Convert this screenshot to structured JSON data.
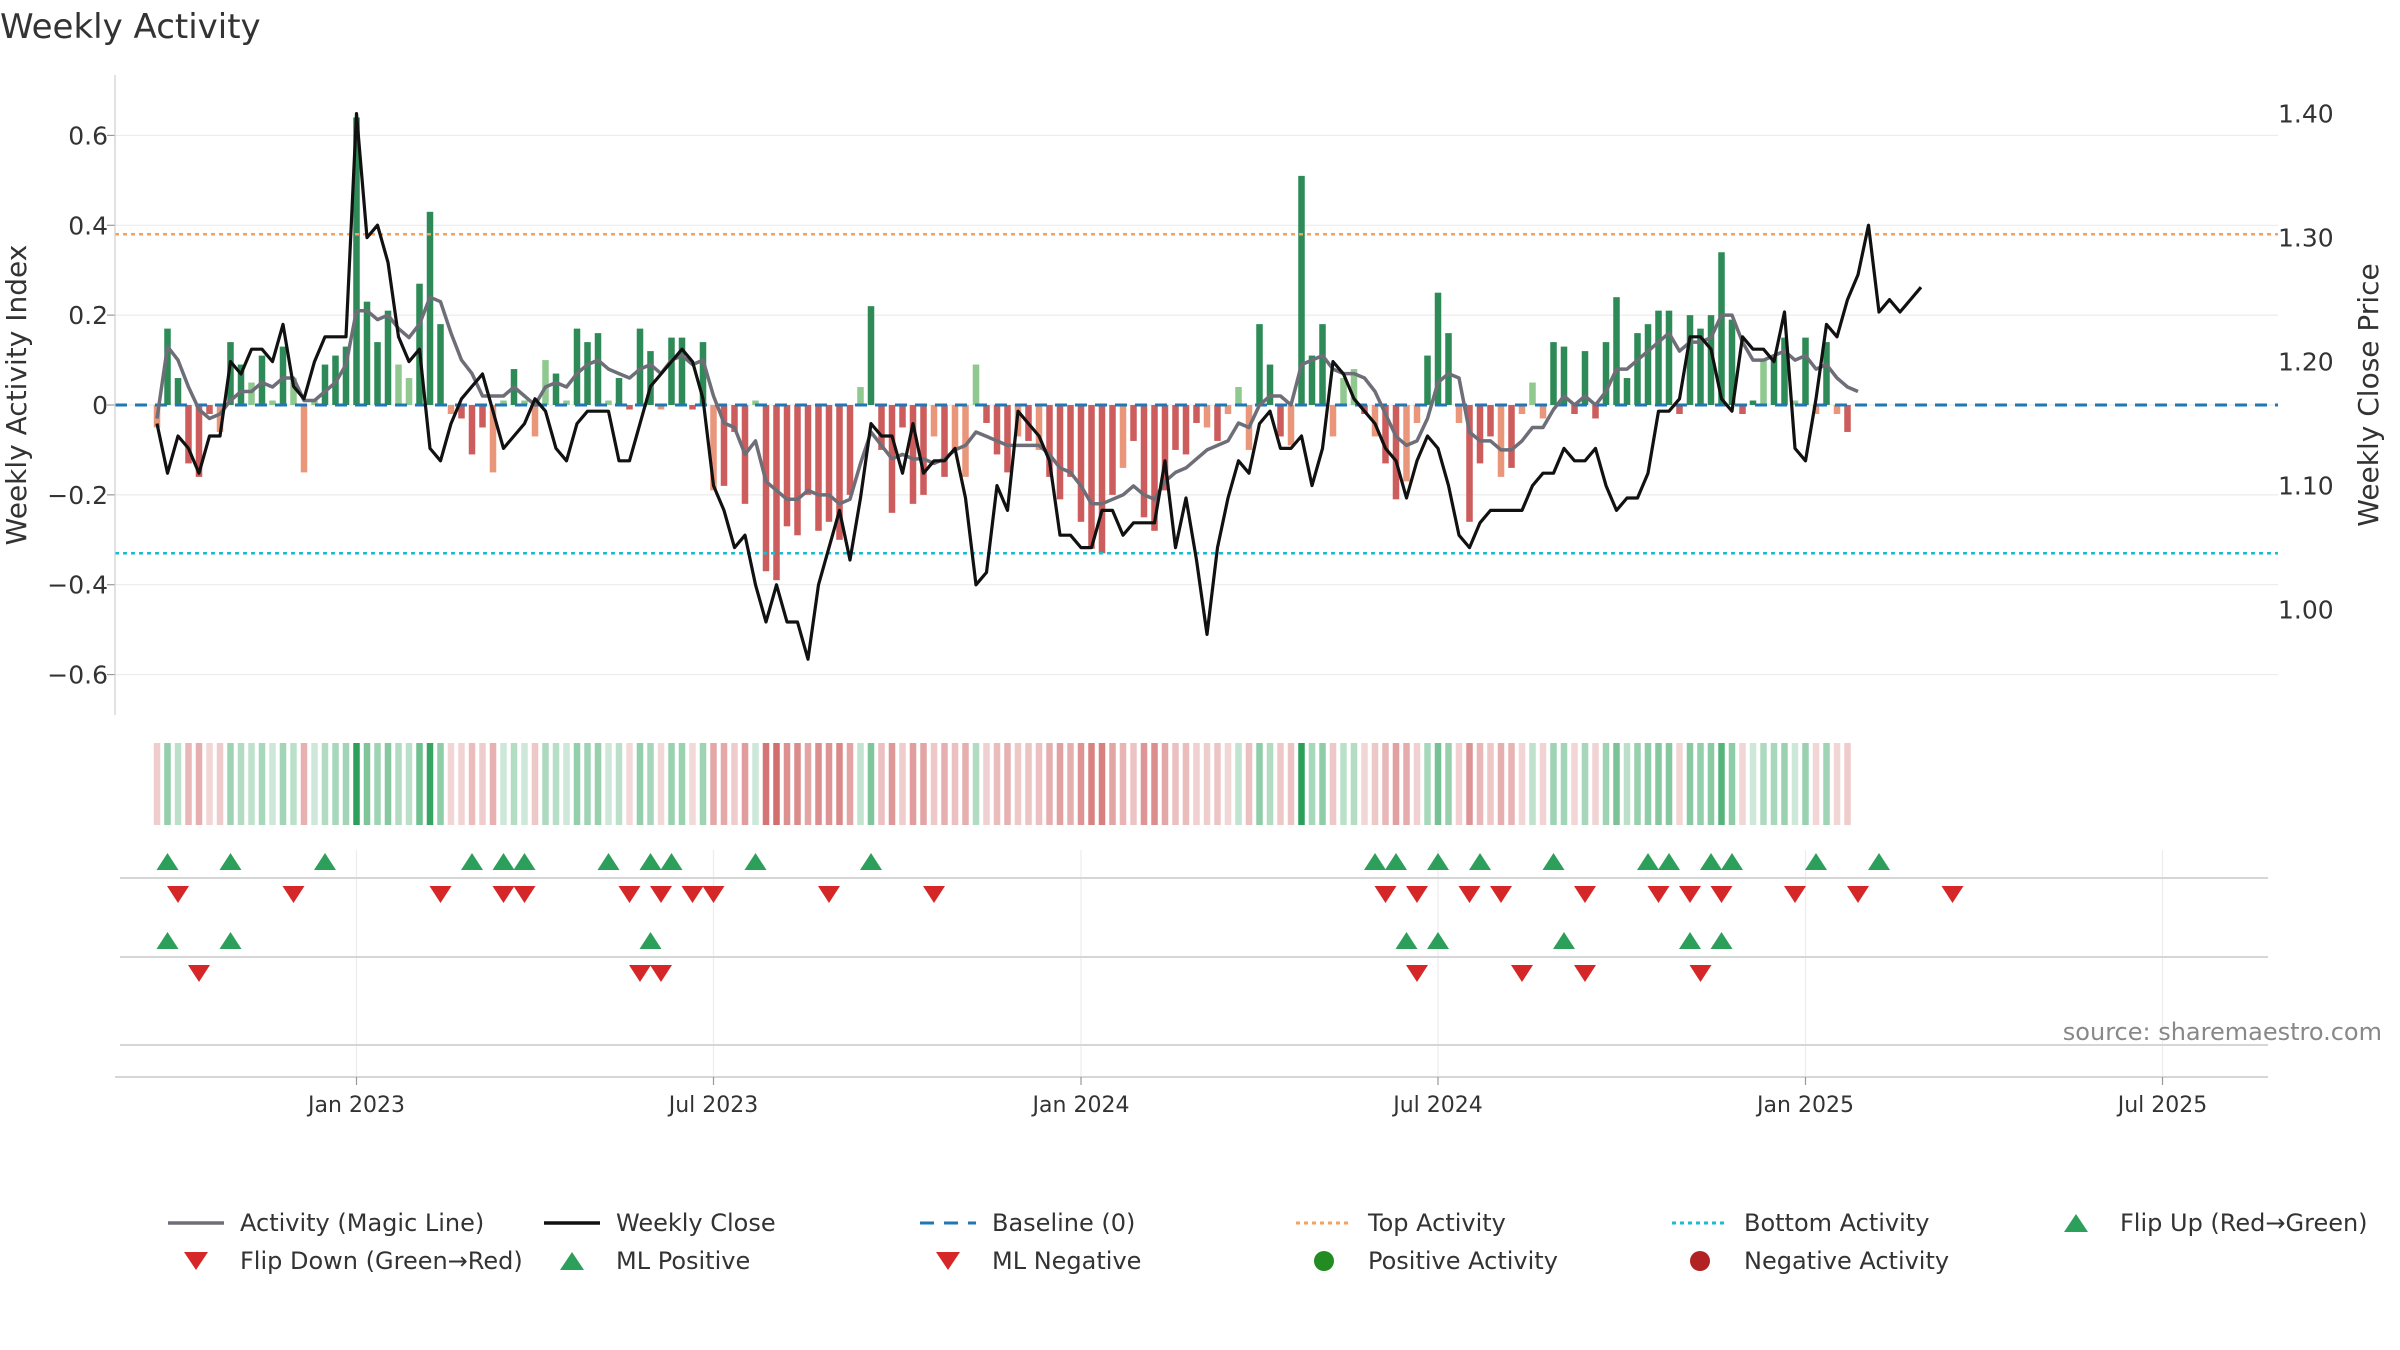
{
  "chart_data": {
    "type": "bar",
    "title": "Weekly Activity",
    "ylabel": "Weekly Activity Index",
    "y2label": "Weekly Close Price",
    "ylim": [
      -0.69,
      0.69
    ],
    "y2lim": [
      0.915,
      1.415
    ],
    "yticks": [
      -0.6,
      -0.4,
      -0.2,
      0,
      0.2,
      0.4,
      0.6
    ],
    "ytick_labels": [
      "−0.6",
      "−0.4",
      "−0.2",
      "0",
      "0.2",
      "0.4",
      "0.6"
    ],
    "y2ticks": [
      1.0,
      1.1,
      1.2,
      1.3,
      1.4
    ],
    "y2tick_labels": [
      "1.00",
      "1.10",
      "1.20",
      "1.30",
      "1.40"
    ],
    "x_range_weeks": [
      -23,
      183
    ],
    "x_ticks": [
      {
        "label": "Jan 2023",
        "week": 0
      },
      {
        "label": "Jul 2023",
        "week": 34
      },
      {
        "label": "Jan 2024",
        "week": 69
      },
      {
        "label": "Jul 2024",
        "week": 103
      },
      {
        "label": "Jan 2025",
        "week": 138
      },
      {
        "label": "Jul 2025",
        "week": 172
      }
    ],
    "top_activity": 0.38,
    "bottom_activity": -0.33,
    "colors": {
      "pos_strong": "#2e8b57",
      "pos_light": "#8fc98f",
      "neg_strong": "#cd5c5c",
      "neg_light": "#e9967a",
      "magic_line": "#6e6e78",
      "close_line": "#111111",
      "baseline": "#1f77b4",
      "top_activity": "#f4a261",
      "bottom_activity": "#17becf",
      "marker_up": "#2ca05a",
      "marker_down": "#d62728",
      "legend_pos": "#228b22",
      "legend_neg": "#b22222"
    },
    "series": [
      {
        "name": "Activity",
        "start_week": -19,
        "values": [
          -0.05,
          0.17,
          0.06,
          -0.13,
          -0.16,
          -0.02,
          -0.06,
          0.14,
          0.09,
          0.05,
          0.11,
          0.01,
          0.13,
          0.06,
          -0.15,
          0.01,
          0.09,
          0.11,
          0.13,
          0.64,
          0.23,
          0.14,
          0.21,
          0.09,
          0.06,
          0.27,
          0.43,
          0.18,
          -0.02,
          -0.03,
          -0.11,
          -0.05,
          -0.15,
          0.01,
          0.08,
          0.01,
          -0.07,
          0.1,
          0.07,
          0.01,
          0.17,
          0.14,
          0.16,
          0.01,
          0.06,
          -0.01,
          0.17,
          0.12,
          -0.01,
          0.15,
          0.15,
          -0.01,
          0.14,
          -0.19,
          -0.18,
          -0.06,
          -0.22,
          0.01,
          -0.37,
          -0.39,
          -0.27,
          -0.29,
          -0.2,
          -0.28,
          -0.26,
          -0.3,
          -0.2,
          0.04,
          0.22,
          -0.1,
          -0.24,
          -0.05,
          -0.22,
          -0.2,
          -0.07,
          -0.16,
          -0.1,
          -0.16,
          0.09,
          -0.04,
          -0.11,
          -0.15,
          -0.07,
          -0.08,
          -0.1,
          -0.16,
          -0.21,
          -0.16,
          -0.26,
          -0.32,
          -0.33,
          -0.2,
          -0.14,
          -0.08,
          -0.25,
          -0.28,
          -0.19,
          -0.1,
          -0.11,
          -0.04,
          -0.05,
          -0.08,
          -0.02,
          0.04,
          -0.1,
          0.18,
          0.09,
          -0.07,
          -0.09,
          0.51,
          0.11,
          0.18,
          -0.07,
          0.06,
          0.08,
          -0.02,
          -0.07,
          -0.13,
          -0.21,
          -0.17,
          -0.04,
          0.11,
          0.25,
          0.16,
          -0.04,
          -0.26,
          -0.13,
          -0.07,
          -0.16,
          -0.14,
          -0.02,
          0.05,
          -0.03,
          0.14,
          0.13,
          -0.02,
          0.12,
          -0.03,
          0.14,
          0.24,
          0.06,
          0.16,
          0.18,
          0.21,
          0.21,
          -0.02,
          0.2,
          0.17,
          0.2,
          0.34,
          0.19,
          -0.02,
          0.01,
          0.1,
          0.11,
          0.15,
          0.01,
          0.15,
          -0.02,
          0.14,
          -0.02,
          -0.06
        ]
      },
      {
        "name": "Activity (Magic Line)",
        "start_week": -19,
        "values": [
          -0.03,
          0.13,
          0.1,
          0.04,
          -0.01,
          -0.03,
          -0.02,
          0.01,
          0.03,
          0.03,
          0.05,
          0.04,
          0.06,
          0.06,
          0.01,
          0.01,
          0.03,
          0.05,
          0.09,
          0.21,
          0.21,
          0.19,
          0.2,
          0.17,
          0.15,
          0.18,
          0.24,
          0.23,
          0.16,
          0.1,
          0.07,
          0.02,
          0.02,
          0.02,
          0.04,
          0.02,
          0.0,
          0.04,
          0.05,
          0.04,
          0.07,
          0.09,
          0.1,
          0.08,
          0.07,
          0.06,
          0.08,
          0.09,
          0.07,
          0.1,
          0.11,
          0.09,
          0.1,
          0.02,
          -0.04,
          -0.05,
          -0.11,
          -0.08,
          -0.17,
          -0.19,
          -0.21,
          -0.21,
          -0.19,
          -0.2,
          -0.2,
          -0.22,
          -0.21,
          -0.13,
          -0.06,
          -0.09,
          -0.12,
          -0.11,
          -0.12,
          -0.12,
          -0.13,
          -0.12,
          -0.1,
          -0.09,
          -0.06,
          -0.07,
          -0.08,
          -0.09,
          -0.09,
          -0.09,
          -0.09,
          -0.11,
          -0.14,
          -0.15,
          -0.18,
          -0.22,
          -0.22,
          -0.21,
          -0.2,
          -0.18,
          -0.2,
          -0.21,
          -0.17,
          -0.15,
          -0.14,
          -0.12,
          -0.1,
          -0.09,
          -0.08,
          -0.04,
          -0.05,
          0.0,
          0.02,
          0.02,
          0.0,
          0.09,
          0.1,
          0.11,
          0.08,
          0.07,
          0.07,
          0.06,
          0.03,
          -0.02,
          -0.07,
          -0.09,
          -0.08,
          -0.03,
          0.05,
          0.07,
          0.06,
          -0.06,
          -0.08,
          -0.08,
          -0.1,
          -0.1,
          -0.08,
          -0.05,
          -0.05,
          -0.01,
          0.02,
          0.0,
          0.02,
          0.0,
          0.03,
          0.08,
          0.08,
          0.1,
          0.12,
          0.14,
          0.16,
          0.12,
          0.14,
          0.14,
          0.15,
          0.2,
          0.2,
          0.14,
          0.1,
          0.1,
          0.11,
          0.12,
          0.1,
          0.11,
          0.08,
          0.09,
          0.06,
          0.04,
          0.03
        ]
      },
      {
        "name": "Weekly Close",
        "start_week": -19,
        "values": [
          1.15,
          1.11,
          1.14,
          1.13,
          1.11,
          1.14,
          1.14,
          1.2,
          1.19,
          1.21,
          1.21,
          1.2,
          1.23,
          1.18,
          1.17,
          1.2,
          1.22,
          1.22,
          1.22,
          1.4,
          1.3,
          1.31,
          1.28,
          1.22,
          1.2,
          1.21,
          1.13,
          1.12,
          1.15,
          1.17,
          1.18,
          1.19,
          1.16,
          1.13,
          1.14,
          1.15,
          1.17,
          1.16,
          1.13,
          1.12,
          1.15,
          1.16,
          1.16,
          1.16,
          1.12,
          1.12,
          1.15,
          1.18,
          1.19,
          1.2,
          1.21,
          1.2,
          1.17,
          1.1,
          1.08,
          1.05,
          1.06,
          1.02,
          0.99,
          1.02,
          0.99,
          0.99,
          0.96,
          1.02,
          1.05,
          1.08,
          1.04,
          1.09,
          1.15,
          1.14,
          1.14,
          1.11,
          1.15,
          1.11,
          1.12,
          1.12,
          1.13,
          1.09,
          1.02,
          1.03,
          1.1,
          1.08,
          1.16,
          1.15,
          1.14,
          1.12,
          1.06,
          1.06,
          1.05,
          1.05,
          1.08,
          1.08,
          1.06,
          1.07,
          1.07,
          1.07,
          1.12,
          1.05,
          1.09,
          1.04,
          0.98,
          1.05,
          1.09,
          1.12,
          1.11,
          1.15,
          1.16,
          1.13,
          1.13,
          1.14,
          1.1,
          1.13,
          1.2,
          1.19,
          1.17,
          1.16,
          1.15,
          1.13,
          1.12,
          1.09,
          1.12,
          1.14,
          1.13,
          1.1,
          1.06,
          1.05,
          1.07,
          1.08,
          1.08,
          1.08,
          1.08,
          1.1,
          1.11,
          1.11,
          1.13,
          1.12,
          1.12,
          1.13,
          1.1,
          1.08,
          1.09,
          1.09,
          1.11,
          1.16,
          1.16,
          1.17,
          1.22,
          1.22,
          1.21,
          1.17,
          1.16,
          1.22,
          1.21,
          1.21,
          1.2,
          1.24,
          1.13,
          1.12,
          1.17,
          1.23,
          1.22,
          1.25,
          1.27,
          1.31,
          1.24,
          1.25,
          1.24,
          1.25,
          1.26
        ]
      }
    ],
    "flip_up_weeks": [
      -18,
      -12,
      -3,
      11,
      14,
      16,
      24,
      28,
      30,
      38,
      49,
      97,
      99,
      103,
      107,
      114,
      123,
      125,
      129,
      131,
      139,
      145
    ],
    "flip_down_weeks": [
      -17,
      -6,
      8,
      14,
      16,
      26,
      29,
      32,
      34,
      45,
      55,
      98,
      101,
      106,
      109,
      117,
      124,
      127,
      130,
      137,
      143,
      152
    ],
    "ml_positive_weeks": [
      -18,
      -12,
      28,
      100,
      103,
      115,
      127,
      130
    ],
    "ml_negative_weeks": [
      -15,
      27,
      29,
      101,
      111,
      117,
      128
    ],
    "annotation": "source: sharemaestro.com"
  },
  "legend": [
    {
      "label": "Activity (Magic Line)",
      "icon": "gray-line"
    },
    {
      "label": "Weekly Close",
      "icon": "black-line"
    },
    {
      "label": "Baseline (0)",
      "icon": "blue-dashed-line"
    },
    {
      "label": "Top Activity",
      "icon": "orange-dotted-line"
    },
    {
      "label": "Bottom Activity",
      "icon": "cyan-dotted-line"
    },
    {
      "label": "Flip Up (Red→Green)",
      "icon": "green-up-triangle"
    },
    {
      "label": "Flip Down (Green→Red)",
      "icon": "red-down-triangle"
    },
    {
      "label": "ML Positive",
      "icon": "green-up-triangle"
    },
    {
      "label": "ML Negative",
      "icon": "red-down-triangle"
    },
    {
      "label": "Positive Activity",
      "icon": "green-circle"
    },
    {
      "label": "Negative Activity",
      "icon": "red-circle"
    }
  ]
}
